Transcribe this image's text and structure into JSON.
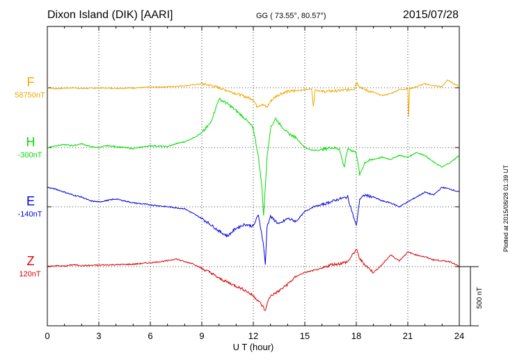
{
  "header": {
    "station": "Dixon Island (DIK)  [AARI]",
    "coords": "GG ( 73.55°,  80.57°)",
    "date": "2015/07/28"
  },
  "footer_note": "Plotted at 2015/08/28 01:39 UT",
  "channels": [
    {
      "name": "F",
      "baseline": "58750nT",
      "color": "#f0a800"
    },
    {
      "name": "H",
      "baseline": "-300nT",
      "color": "#00dd00"
    },
    {
      "name": "E",
      "baseline": "-140nT",
      "color": "#0000dd"
    },
    {
      "name": "Z",
      "baseline": "120nT",
      "color": "#dd0000"
    }
  ],
  "chart_data": {
    "type": "line",
    "xlabel": "U T (hour)",
    "xlim": [
      0,
      24
    ],
    "xticks": [
      0,
      3,
      6,
      9,
      12,
      15,
      18,
      21,
      24
    ],
    "ylabel": "",
    "scale_bar_label": "500 nT",
    "scale_bar_nT": 500,
    "grid": true,
    "series": [
      {
        "name": "F",
        "x": [
          0,
          0.5,
          1,
          1.5,
          2,
          3,
          4,
          5,
          6,
          7,
          8,
          8.5,
          9,
          9.5,
          10,
          10.5,
          11,
          11.5,
          12,
          12.2,
          12.5,
          12.8,
          13,
          13.3,
          13.6,
          14,
          14.5,
          15,
          15.4,
          15.5,
          15.6,
          16,
          17,
          17.5,
          17.9,
          18,
          18.2,
          18.5,
          19,
          19.5,
          20,
          20.5,
          21,
          21.05,
          21.1,
          21.5,
          22,
          22.5,
          23,
          23.3,
          23.6,
          23.8,
          24
        ],
        "values": [
          0,
          -10,
          -5,
          0,
          -8,
          -3,
          -5,
          -2,
          5,
          10,
          20,
          30,
          40,
          25,
          0,
          -30,
          -60,
          -90,
          -120,
          -190,
          -170,
          -200,
          -140,
          -90,
          -60,
          -40,
          -30,
          -20,
          -10,
          -200,
          -20,
          -40,
          -30,
          -20,
          -10,
          60,
          10,
          -20,
          -50,
          -80,
          -60,
          -20,
          -10,
          -300,
          -10,
          10,
          40,
          20,
          10,
          80,
          50,
          30,
          20
        ]
      },
      {
        "name": "H",
        "x": [
          0,
          0.5,
          1,
          1.5,
          2,
          2.5,
          3,
          3.5,
          4,
          5,
          6,
          7,
          7.5,
          8,
          8.5,
          9,
          9.5,
          10,
          10.5,
          11,
          11.5,
          12,
          12.3,
          12.5,
          12.6,
          12.7,
          12.8,
          13,
          13.3,
          13.5,
          14,
          14.5,
          15,
          15.5,
          16,
          16.5,
          17,
          17.3,
          17.5,
          18,
          18.2,
          18.5,
          19,
          19.5,
          20,
          20.5,
          21,
          21.5,
          22,
          22.5,
          23,
          23.5,
          24
        ],
        "values": [
          0,
          20,
          30,
          20,
          40,
          10,
          0,
          20,
          10,
          -10,
          20,
          10,
          40,
          60,
          100,
          150,
          250,
          500,
          450,
          380,
          300,
          200,
          -100,
          -400,
          -700,
          -400,
          -100,
          200,
          300,
          250,
          150,
          100,
          0,
          -30,
          -20,
          0,
          -10,
          -200,
          -10,
          -50,
          -280,
          -150,
          -120,
          -100,
          -120,
          -80,
          -100,
          -50,
          -80,
          -150,
          -200,
          -150,
          -80
        ]
      },
      {
        "name": "E",
        "x": [
          0,
          0.5,
          1,
          1.5,
          2,
          2.5,
          3,
          4,
          5,
          6,
          7,
          8,
          9,
          9.5,
          10,
          10.5,
          11,
          11.5,
          12,
          12.3,
          12.6,
          12.7,
          12.8,
          13,
          13.5,
          14,
          14.5,
          15,
          15.5,
          16,
          16.5,
          17,
          17.5,
          18,
          18.2,
          18.5,
          19,
          19.5,
          20,
          20.5,
          21,
          21.5,
          22,
          22.5,
          23,
          23.5,
          24
        ],
        "values": [
          200,
          180,
          150,
          120,
          100,
          60,
          50,
          80,
          40,
          20,
          0,
          -20,
          -120,
          -180,
          -250,
          -300,
          -220,
          -180,
          -200,
          -80,
          -400,
          -600,
          -200,
          -100,
          -180,
          -120,
          -150,
          -50,
          0,
          20,
          50,
          80,
          100,
          -200,
          80,
          120,
          100,
          60,
          40,
          0,
          50,
          100,
          150,
          120,
          200,
          180,
          150
        ]
      },
      {
        "name": "Z",
        "x": [
          0,
          0.5,
          1,
          1.5,
          2,
          3,
          4,
          5,
          6,
          7,
          7.5,
          8,
          8.5,
          9,
          9.5,
          10,
          10.5,
          11,
          11.5,
          12,
          12.3,
          12.6,
          12.7,
          12.8,
          13,
          13.5,
          14,
          14.5,
          15,
          15.5,
          16,
          16.5,
          17,
          17.5,
          17.9,
          18,
          18.2,
          18.5,
          19,
          19.5,
          20,
          20.5,
          21,
          21.5,
          22,
          22.5,
          23,
          23.5,
          24
        ],
        "values": [
          0,
          10,
          5,
          20,
          10,
          15,
          20,
          25,
          40,
          60,
          80,
          50,
          30,
          -20,
          -60,
          -120,
          -160,
          -200,
          -240,
          -300,
          -350,
          -420,
          -460,
          -380,
          -300,
          -250,
          -180,
          -100,
          -60,
          -40,
          -20,
          20,
          30,
          50,
          150,
          180,
          80,
          20,
          -60,
          20,
          120,
          60,
          150,
          120,
          100,
          70,
          60,
          50,
          0
        ]
      }
    ]
  }
}
